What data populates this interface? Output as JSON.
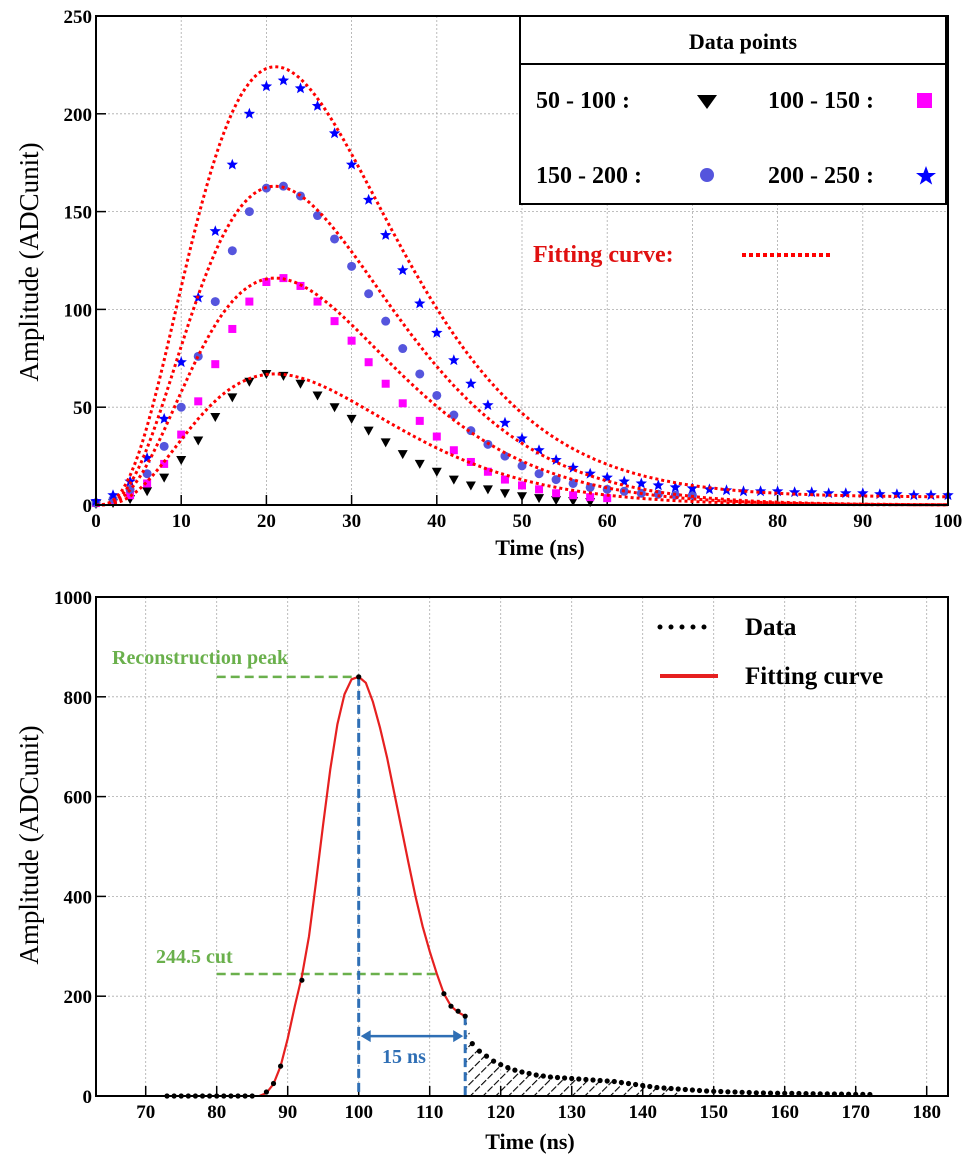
{
  "chart_data": [
    {
      "type": "scatter",
      "title": "",
      "xlabel": "Time (ns)",
      "ylabel": "Amplitude (ADCunit)",
      "xlim": [
        0,
        100
      ],
      "ylim": [
        0,
        250
      ],
      "x_ticks": [
        0,
        10,
        20,
        30,
        40,
        50,
        60,
        70,
        80,
        90,
        100
      ],
      "y_ticks": [
        0,
        50,
        100,
        150,
        200,
        250
      ],
      "grid": true,
      "legend": {
        "placement": "top-right",
        "header": "Data points",
        "entries": [
          {
            "label": "50  -  100 :",
            "marker": "triangle-down",
            "color": "#000000"
          },
          {
            "label": "100 - 150 :",
            "marker": "square",
            "color": "#ff00ff"
          },
          {
            "label": "150 - 200 :",
            "marker": "circle",
            "color": "#5555dd"
          },
          {
            "label": "200 - 250 :",
            "marker": "star",
            "color": "#0000ff"
          }
        ],
        "fit_label": "Fitting curve:",
        "fit_color": "#ff0000"
      },
      "series": [
        {
          "marker": "triangle-down",
          "color": "#000000",
          "x": [
            0,
            2,
            4,
            6,
            8,
            10,
            12,
            14,
            16,
            18,
            20,
            22,
            24,
            26,
            28,
            30,
            32,
            34,
            36,
            38,
            40,
            42,
            44,
            46,
            48,
            50,
            52,
            54,
            56,
            58
          ],
          "y": [
            0.5,
            1,
            3,
            7,
            14,
            23,
            33,
            45,
            55,
            63,
            67,
            66,
            62,
            56,
            50,
            44,
            38,
            32,
            26,
            21,
            17,
            13,
            10,
            8,
            6,
            4.5,
            3.5,
            2.5,
            2,
            1.5
          ]
        },
        {
          "marker": "square",
          "color": "#ff00ff",
          "x": [
            0,
            2,
            4,
            6,
            8,
            10,
            12,
            14,
            16,
            18,
            20,
            22,
            24,
            26,
            28,
            30,
            32,
            34,
            36,
            38,
            40,
            42,
            44,
            46,
            48,
            50,
            52,
            54,
            56,
            58,
            60
          ],
          "y": [
            1,
            2,
            5,
            11,
            21,
            36,
            53,
            72,
            90,
            104,
            114,
            116,
            112,
            104,
            94,
            84,
            73,
            62,
            52,
            43,
            35,
            28,
            22,
            17,
            13,
            10,
            8,
            6,
            5,
            4,
            3.5
          ]
        },
        {
          "marker": "circle",
          "color": "#5555dd",
          "x": [
            0,
            2,
            4,
            6,
            8,
            10,
            12,
            14,
            16,
            18,
            20,
            22,
            24,
            26,
            28,
            30,
            32,
            34,
            36,
            38,
            40,
            42,
            44,
            46,
            48,
            50,
            52,
            54,
            56,
            58,
            60,
            62,
            64,
            66,
            68,
            70
          ],
          "y": [
            1,
            3,
            8,
            16,
            30,
            50,
            76,
            104,
            130,
            150,
            162,
            163,
            158,
            148,
            136,
            122,
            108,
            94,
            80,
            67,
            56,
            46,
            38,
            31,
            25,
            20,
            16,
            13,
            11,
            9,
            8,
            7,
            6,
            5.5,
            5,
            5
          ]
        },
        {
          "marker": "star",
          "color": "#0000ff",
          "x": [
            0,
            2,
            4,
            6,
            8,
            10,
            12,
            14,
            16,
            18,
            20,
            22,
            24,
            26,
            28,
            30,
            32,
            34,
            36,
            38,
            40,
            42,
            44,
            46,
            48,
            50,
            52,
            54,
            56,
            58,
            60,
            62,
            64,
            66,
            68,
            70,
            72,
            74,
            76,
            78,
            80,
            82,
            84,
            86,
            88,
            90,
            92,
            94,
            96,
            98,
            100
          ],
          "y": [
            2,
            5,
            12,
            24,
            44,
            73,
            106,
            140,
            174,
            200,
            214,
            217,
            213,
            204,
            190,
            174,
            156,
            138,
            120,
            103,
            88,
            74,
            62,
            51,
            42,
            34,
            28,
            23,
            19,
            16,
            14,
            12,
            11,
            10,
            9,
            8.5,
            8,
            7.5,
            7,
            7,
            7,
            6.5,
            6.5,
            6,
            6,
            6,
            5.5,
            5.5,
            5,
            5,
            5
          ]
        }
      ],
      "fit_curves": [
        {
          "peak": 67,
          "color": "#ff0000"
        },
        {
          "peak": 116,
          "color": "#ff0000"
        },
        {
          "peak": 163,
          "color": "#ff0000"
        },
        {
          "peak": 222,
          "color": "#ff0000"
        }
      ]
    },
    {
      "type": "line",
      "title": "",
      "xlabel": "Time (ns)",
      "ylabel": "Amplitude (ADCunit)",
      "xlim": [
        63,
        183
      ],
      "ylim": [
        0,
        1000
      ],
      "x_ticks": [
        70,
        80,
        90,
        100,
        110,
        120,
        130,
        140,
        150,
        160,
        170,
        180
      ],
      "y_ticks": [
        0,
        200,
        400,
        600,
        800,
        1000
      ],
      "grid": true,
      "legend": {
        "placement": "top-right",
        "entries": [
          {
            "label": "Data",
            "style": "dotted",
            "color": "#000000"
          },
          {
            "label": "Fitting curve",
            "style": "solid",
            "color": "#e62020"
          }
        ]
      },
      "annotations": {
        "peak_label": "Reconstruction peak",
        "peak_value": 840,
        "peak_time": 100,
        "cut_label": "244.5 cut",
        "cut_value": 244.5,
        "interval_label": "15 ns",
        "interval_start": 100,
        "interval_end": 115,
        "label_color": "#6ab04c",
        "marker_color": "#2f6fb5"
      },
      "data_series": {
        "x": [
          73,
          74,
          75,
          76,
          77,
          78,
          79,
          80,
          81,
          82,
          83,
          84,
          85,
          86,
          87,
          88,
          89,
          90,
          91,
          92,
          93,
          94,
          95,
          96,
          97,
          98,
          99,
          100,
          101,
          102,
          103,
          104,
          105,
          106,
          107,
          108,
          109,
          110,
          111,
          112,
          113,
          114,
          115,
          116,
          117,
          118,
          119,
          120,
          121,
          122,
          123,
          124,
          125,
          126,
          127,
          128,
          129,
          130,
          131,
          132,
          133,
          134,
          135,
          136,
          137,
          138,
          139,
          140,
          141,
          142,
          143,
          144,
          145,
          146,
          147,
          148,
          149,
          150,
          151,
          152,
          153,
          154,
          155,
          156,
          157,
          158,
          159,
          160,
          161,
          162,
          163,
          164,
          165,
          166,
          167,
          168,
          169,
          170,
          171,
          172
        ],
        "y": [
          0,
          0,
          0,
          0,
          0,
          0,
          0,
          0,
          0,
          0,
          0,
          0,
          0,
          2,
          8,
          25,
          60,
          115,
          180,
          232,
          310,
          420,
          540,
          650,
          740,
          800,
          830,
          840,
          830,
          790,
          740,
          680,
          610,
          540,
          470,
          400,
          340,
          290,
          245,
          205,
          180,
          170,
          160,
          105,
          90,
          80,
          70,
          63,
          57,
          52,
          48,
          45,
          42,
          40,
          38,
          37,
          36,
          35,
          34,
          33,
          32,
          31,
          30,
          29,
          27,
          25,
          23,
          21,
          19,
          17,
          16,
          15,
          14,
          13,
          12,
          11,
          10,
          9.5,
          9,
          8.5,
          8,
          7.5,
          7,
          6.5,
          6,
          5.8,
          5.6,
          5.4,
          5.2,
          5,
          4.8,
          4.6,
          4.4,
          4.2,
          4,
          3.8,
          3.6,
          3.4,
          3.2,
          3
        ]
      },
      "fit_series": {
        "x": [
          86,
          87,
          88,
          89,
          90,
          91,
          92,
          93,
          94,
          95,
          96,
          97,
          98,
          99,
          100,
          101,
          102,
          103,
          104,
          105,
          106,
          107,
          108,
          109,
          110,
          111,
          112,
          113,
          114,
          115
        ],
        "y": [
          0,
          6,
          24,
          60,
          115,
          180,
          240,
          320,
          430,
          545,
          655,
          745,
          805,
          835,
          840,
          828,
          790,
          738,
          678,
          608,
          538,
          468,
          400,
          340,
          290,
          245,
          205,
          180,
          168,
          160
        ]
      }
    }
  ]
}
